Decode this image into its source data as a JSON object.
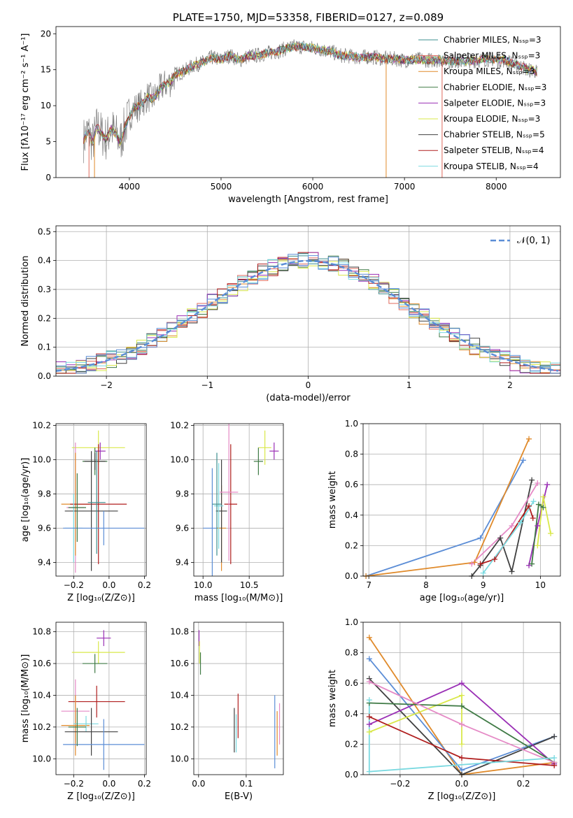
{
  "colors": {
    "Chabrier MILES": "#3d8f8f",
    "Salpeter MILES": "#e06a5c",
    "Kroupa MILES": "#e08a2a",
    "Chabrier ELODIE": "#3f7a45",
    "Salpeter ELODIE": "#9a2fb5",
    "Kroupa ELODIE": "#d9e84a",
    "Chabrier STELIB": "#404040",
    "Salpeter STELIB": "#b01e1e",
    "Kroupa STELIB": "#7ad9e0",
    "gauss": "#5b8dd6",
    "data": "#7f7f7f",
    "pink": "#e58ac6",
    "blue": "#5b8dd6"
  },
  "chart_data": [
    {
      "id": "spectrum",
      "type": "line",
      "title": "PLATE=1750, MJD=53358, FIBERID=0127, z=0.089",
      "xlabel": "wavelength [Angstrom, rest frame]",
      "ylabel": "Flux [fλ10⁻¹⁷ erg cm⁻² s⁻¹ A⁻¹]",
      "xlim": [
        3200,
        8700
      ],
      "ylim": [
        0,
        21
      ],
      "xticks": [
        4000,
        5000,
        6000,
        7000,
        8000
      ],
      "yticks": [
        0,
        5,
        10,
        15,
        20
      ],
      "grid": false,
      "legend_position": "lower right",
      "series": [
        {
          "name": "Chabrier MILES, Nₛₛₚ=3",
          "color_key": "Chabrier MILES"
        },
        {
          "name": "Salpeter MILES, Nₛₛₚ=3",
          "color_key": "Salpeter MILES"
        },
        {
          "name": "Kroupa MILES, Nₛₛₚ=3",
          "color_key": "Kroupa MILES"
        },
        {
          "name": "Chabrier ELODIE, Nₛₛₚ=3",
          "color_key": "Chabrier ELODIE"
        },
        {
          "name": "Salpeter ELODIE, Nₛₛₚ=3",
          "color_key": "Salpeter ELODIE"
        },
        {
          "name": "Kroupa ELODIE, Nₛₛₚ=3",
          "color_key": "Kroupa ELODIE"
        },
        {
          "name": "Chabrier STELIB, Nₛₛₚ=5",
          "color_key": "Chabrier STELIB"
        },
        {
          "name": "Salpeter STELIB, Nₛₛₚ=4",
          "color_key": "Salpeter STELIB"
        },
        {
          "name": "Kroupa STELIB, Nₛₛₚ=4",
          "color_key": "Kroupa STELIB"
        }
      ],
      "data_curve": [
        [
          3500,
          5.2
        ],
        [
          3550,
          6.5
        ],
        [
          3600,
          4.8
        ],
        [
          3650,
          7.2
        ],
        [
          3700,
          6.0
        ],
        [
          3750,
          5.3
        ],
        [
          3800,
          6.8
        ],
        [
          3850,
          6.1
        ],
        [
          3900,
          4.9
        ],
        [
          3950,
          7.0
        ],
        [
          4000,
          8.5
        ],
        [
          4050,
          9.6
        ],
        [
          4100,
          9.9
        ],
        [
          4150,
          10.4
        ],
        [
          4200,
          11.3
        ],
        [
          4250,
          10.9
        ],
        [
          4300,
          11.6
        ],
        [
          4350,
          12.6
        ],
        [
          4400,
          13.0
        ],
        [
          4450,
          13.3
        ],
        [
          4500,
          14.3
        ],
        [
          4600,
          14.8
        ],
        [
          4700,
          15.6
        ],
        [
          4800,
          16.0
        ],
        [
          4900,
          16.7
        ],
        [
          5000,
          16.4
        ],
        [
          5100,
          17.0
        ],
        [
          5200,
          16.3
        ],
        [
          5300,
          16.9
        ],
        [
          5400,
          17.0
        ],
        [
          5500,
          17.3
        ],
        [
          5600,
          17.5
        ],
        [
          5700,
          17.9
        ],
        [
          5800,
          18.2
        ],
        [
          5900,
          18.2
        ],
        [
          6000,
          18.0
        ],
        [
          6100,
          17.8
        ],
        [
          6200,
          17.5
        ],
        [
          6300,
          17.0
        ],
        [
          6400,
          16.9
        ],
        [
          6500,
          16.7
        ],
        [
          6600,
          16.8
        ],
        [
          6700,
          16.7
        ],
        [
          6800,
          16.5
        ],
        [
          6900,
          16.5
        ],
        [
          7000,
          16.3
        ],
        [
          7100,
          16.4
        ],
        [
          7200,
          16.4
        ],
        [
          7300,
          16.3
        ],
        [
          7400,
          16.4
        ],
        [
          7500,
          16.2
        ],
        [
          7600,
          16.2
        ],
        [
          7700,
          16.2
        ],
        [
          7800,
          16.3
        ],
        [
          7900,
          16.5
        ],
        [
          8000,
          16.4
        ],
        [
          8100,
          16.3
        ],
        [
          8200,
          15.8
        ],
        [
          8300,
          15.3
        ],
        [
          8350,
          14.9
        ],
        [
          8400,
          15.0
        ],
        [
          8450,
          14.6
        ]
      ]
    },
    {
      "id": "residuals",
      "type": "line",
      "xlabel": "(data-model)/error",
      "ylabel": "Normed distribution",
      "xlim": [
        -2.5,
        2.5
      ],
      "ylim": [
        0,
        0.52
      ],
      "xticks": [
        -2,
        -1,
        0,
        1,
        2
      ],
      "yticks": [
        0.0,
        0.1,
        0.2,
        0.3,
        0.4,
        0.5
      ],
      "grid": true,
      "legend": [
        {
          "name": "𝒩(0, 1)",
          "color_key": "gauss"
        }
      ],
      "legend_position": "top-right"
    },
    {
      "id": "age_vs_Z",
      "type": "scatter",
      "xlabel": "Z [log₁₀(Z/Z⊙)]",
      "ylabel": "age  [log₁₀(age/yr)]",
      "xlim": [
        -0.3,
        0.21
      ],
      "ylim": [
        9.32,
        10.21
      ],
      "xticks": [
        -0.2,
        0.0,
        0.2
      ],
      "yticks": [
        9.4,
        9.6,
        9.8,
        10.0,
        10.2
      ],
      "grid": true,
      "points": [
        {
          "x": -0.06,
          "y": 10.07,
          "xerr": 0.15,
          "yerr": 0.1,
          "color_key": "Kroupa ELODIE"
        },
        {
          "x": -0.05,
          "y": 10.05,
          "xerr": 0.03,
          "yerr": 0.05,
          "color_key": "Salpeter ELODIE"
        },
        {
          "x": -0.08,
          "y": 9.99,
          "xerr": 0.07,
          "yerr": 0.08,
          "color_key": "Chabrier ELODIE"
        },
        {
          "x": -0.08,
          "y": 9.99,
          "xerr": 0.06,
          "yerr": 0.05,
          "color_key": "Chabrier STELIB"
        },
        {
          "x": -0.19,
          "y": 9.72,
          "xerr": 0.05,
          "yerr": 0.38,
          "color_key": "pink"
        },
        {
          "x": -0.19,
          "y": 9.74,
          "xerr": 0.08,
          "yerr": 0.3,
          "color_key": "Kroupa MILES"
        },
        {
          "x": -0.06,
          "y": 9.74,
          "xerr": 0.16,
          "yerr": 0.35,
          "color_key": "Salpeter STELIB"
        },
        {
          "x": -0.1,
          "y": 9.7,
          "xerr": 0.15,
          "yerr": 0.35,
          "color_key": "Chabrier STELIB"
        },
        {
          "x": -0.2,
          "y": 9.6,
          "xerr": 0.05,
          "yerr": 0.2,
          "color_key": "Kroupa STELIB"
        },
        {
          "x": -0.03,
          "y": 9.6,
          "xerr": 0.23,
          "yerr": 0.1,
          "color_key": "blue"
        },
        {
          "x": -0.07,
          "y": 9.75,
          "xerr": 0.05,
          "yerr": 0.3,
          "color_key": "Chabrier MILES"
        },
        {
          "x": -0.18,
          "y": 9.72,
          "xerr": 0.05,
          "yerr": 0.2,
          "color_key": "Chabrier ELODIE"
        }
      ]
    },
    {
      "id": "age_vs_mass",
      "type": "scatter",
      "xlabel": "mass [log₁₀(M/M⊙)]",
      "ylabel": "",
      "xlim": [
        9.9,
        10.87
      ],
      "ylim": [
        9.32,
        10.21
      ],
      "xticks": [
        10.0,
        10.5
      ],
      "yticks": [
        9.4,
        9.6,
        9.8,
        10.0,
        10.2
      ],
      "grid": true,
      "points": [
        {
          "x": 10.67,
          "y": 10.07,
          "xerr": 0.07,
          "yerr": 0.1,
          "color_key": "Kroupa ELODIE"
        },
        {
          "x": 10.77,
          "y": 10.05,
          "xerr": 0.05,
          "yerr": 0.05,
          "color_key": "Salpeter ELODIE"
        },
        {
          "x": 10.6,
          "y": 9.99,
          "xerr": 0.05,
          "yerr": 0.08,
          "color_key": "Chabrier ELODIE"
        },
        {
          "x": 10.1,
          "y": 9.6,
          "xerr": 0.1,
          "yerr": 0.35,
          "color_key": "blue"
        },
        {
          "x": 10.2,
          "y": 9.6,
          "xerr": 0.05,
          "yerr": 0.25,
          "color_key": "Kroupa MILES"
        },
        {
          "x": 10.2,
          "y": 9.7,
          "xerr": 0.06,
          "yerr": 0.3,
          "color_key": "Chabrier STELIB"
        },
        {
          "x": 10.3,
          "y": 9.74,
          "xerr": 0.07,
          "yerr": 0.35,
          "color_key": "Salpeter STELIB"
        },
        {
          "x": 10.28,
          "y": 9.81,
          "xerr": 0.1,
          "yerr": 0.4,
          "color_key": "pink"
        },
        {
          "x": 10.17,
          "y": 9.73,
          "xerr": 0.05,
          "yerr": 0.25,
          "color_key": "Kroupa STELIB"
        },
        {
          "x": 10.15,
          "y": 9.74,
          "xerr": 0.05,
          "yerr": 0.3,
          "color_key": "Chabrier MILES"
        }
      ]
    },
    {
      "id": "weight_vs_age",
      "type": "line",
      "xlabel": "age  [log₁₀(age/yr)]",
      "ylabel": "mass weight",
      "xlim": [
        6.9,
        10.35
      ],
      "ylim": [
        0,
        1.0
      ],
      "xticks": [
        7,
        8,
        9,
        10
      ],
      "yticks": [
        0.0,
        0.2,
        0.4,
        0.6,
        0.8,
        1.0
      ],
      "grid": true,
      "series": [
        {
          "color_key": "blue",
          "x": [
            6.95,
            8.95,
            9.7
          ],
          "y": [
            0.0,
            0.25,
            0.76
          ]
        },
        {
          "color_key": "Kroupa MILES",
          "x": [
            6.95,
            8.85,
            9.8
          ],
          "y": [
            0.0,
            0.09,
            0.9
          ]
        },
        {
          "color_key": "Chabrier STELIB",
          "x": [
            8.8,
            8.95,
            9.3,
            9.5,
            9.85
          ],
          "y": [
            0.0,
            0.07,
            0.25,
            0.03,
            0.63
          ]
        },
        {
          "color_key": "Salpeter STELIB",
          "x": [
            8.95,
            9.2,
            9.8,
            9.87
          ],
          "y": [
            0.08,
            0.11,
            0.46,
            0.38
          ]
        },
        {
          "color_key": "pink",
          "x": [
            8.8,
            9.5,
            9.95
          ],
          "y": [
            0.08,
            0.33,
            0.61
          ]
        },
        {
          "color_key": "Salpeter ELODIE",
          "x": [
            9.8,
            9.95,
            10.12
          ],
          "y": [
            0.07,
            0.33,
            0.6
          ]
        },
        {
          "color_key": "Kroupa ELODIE",
          "x": [
            9.95,
            10.05,
            10.18
          ],
          "y": [
            0.2,
            0.52,
            0.28
          ]
        },
        {
          "color_key": "Kroupa STELIB",
          "x": [
            9.0,
            9.65,
            9.88
          ],
          "y": [
            0.02,
            0.35,
            0.49
          ]
        },
        {
          "color_key": "Chabrier ELODIE",
          "x": [
            9.85,
            9.97,
            10.05
          ],
          "y": [
            0.08,
            0.47,
            0.45
          ]
        }
      ]
    },
    {
      "id": "mass_vs_Z",
      "type": "scatter",
      "xlabel": "Z [log₁₀(Z/Z⊙)]",
      "ylabel": "mass [log₁₀(M/M⊙)]",
      "xlim": [
        -0.3,
        0.21
      ],
      "ylim": [
        9.9,
        10.86
      ],
      "xticks": [
        -0.2,
        0.0,
        0.2
      ],
      "yticks": [
        10.0,
        10.2,
        10.4,
        10.6,
        10.8
      ],
      "grid": true,
      "points": [
        {
          "x": -0.03,
          "y": 10.76,
          "xerr": 0.04,
          "yerr": 0.05,
          "color_key": "Salpeter ELODIE"
        },
        {
          "x": -0.06,
          "y": 10.67,
          "xerr": 0.15,
          "yerr": 0.07,
          "color_key": "Kroupa ELODIE"
        },
        {
          "x": -0.08,
          "y": 10.6,
          "xerr": 0.07,
          "yerr": 0.06,
          "color_key": "Chabrier ELODIE"
        },
        {
          "x": -0.07,
          "y": 10.36,
          "xerr": 0.16,
          "yerr": 0.1,
          "color_key": "Salpeter STELIB"
        },
        {
          "x": -0.19,
          "y": 10.3,
          "xerr": 0.08,
          "yerr": 0.2,
          "color_key": "pink"
        },
        {
          "x": -0.19,
          "y": 10.21,
          "xerr": 0.08,
          "yerr": 0.19,
          "color_key": "Kroupa MILES"
        },
        {
          "x": -0.13,
          "y": 10.22,
          "xerr": 0.07,
          "yerr": 0.05,
          "color_key": "Kroupa STELIB"
        },
        {
          "x": -0.1,
          "y": 10.17,
          "xerr": 0.15,
          "yerr": 0.15,
          "color_key": "Chabrier STELIB"
        },
        {
          "x": -0.03,
          "y": 10.09,
          "xerr": 0.23,
          "yerr": 0.16,
          "color_key": "blue"
        },
        {
          "x": -0.18,
          "y": 10.2,
          "xerr": 0.05,
          "yerr": 0.12,
          "color_key": "Chabrier ELODIE"
        }
      ]
    },
    {
      "id": "mass_vs_EBV",
      "type": "scatter",
      "xlabel": "E(B-V)",
      "ylabel": "",
      "xlim": [
        -0.01,
        0.178
      ],
      "ylim": [
        9.9,
        10.86
      ],
      "xticks": [
        0.0,
        0.1
      ],
      "yticks": [
        10.0,
        10.2,
        10.4,
        10.6,
        10.8
      ],
      "grid": true,
      "points": [
        {
          "x": 0.001,
          "y": 10.76,
          "xerr": 0,
          "yerr": 0.05,
          "color_key": "Salpeter ELODIE"
        },
        {
          "x": 0.002,
          "y": 10.67,
          "xerr": 0,
          "yerr": 0.07,
          "color_key": "Kroupa ELODIE"
        },
        {
          "x": 0.004,
          "y": 10.6,
          "xerr": 0,
          "yerr": 0.07,
          "color_key": "Chabrier ELODIE"
        },
        {
          "x": 0.075,
          "y": 10.18,
          "xerr": 0,
          "yerr": 0.14,
          "color_key": "Chabrier STELIB"
        },
        {
          "x": 0.079,
          "y": 10.16,
          "xerr": 0,
          "yerr": 0.12,
          "color_key": "Kroupa STELIB"
        },
        {
          "x": 0.083,
          "y": 10.27,
          "xerr": 0,
          "yerr": 0.14,
          "color_key": "Salpeter STELIB"
        },
        {
          "x": 0.16,
          "y": 10.17,
          "xerr": 0,
          "yerr": 0.23,
          "color_key": "blue"
        },
        {
          "x": 0.165,
          "y": 10.16,
          "xerr": 0,
          "yerr": 0.14,
          "color_key": "Kroupa MILES"
        },
        {
          "x": 0.17,
          "y": 10.22,
          "xerr": 0,
          "yerr": 0.13,
          "color_key": "pink"
        }
      ]
    },
    {
      "id": "weight_vs_Z",
      "type": "line",
      "xlabel": "Z [log₁₀(Z/Z⊙)]",
      "ylabel": "mass weight",
      "xlim": [
        -0.32,
        0.32
      ],
      "ylim": [
        0,
        1.0
      ],
      "xticks": [
        -0.2,
        0.0,
        0.2
      ],
      "yticks": [
        0.0,
        0.2,
        0.4,
        0.6,
        0.8,
        1.0
      ],
      "grid": true,
      "series": [
        {
          "color_key": "Kroupa MILES",
          "x": [
            -0.3,
            0.0,
            0.3
          ],
          "y": [
            0.9,
            0.0,
            0.08
          ]
        },
        {
          "color_key": "blue",
          "x": [
            -0.3,
            0.0,
            0.3
          ],
          "y": [
            0.76,
            0.03,
            0.25
          ]
        },
        {
          "color_key": "Chabrier STELIB",
          "x": [
            -0.3,
            0.0,
            0.3
          ],
          "y": [
            0.63,
            0.0,
            0.25
          ]
        },
        {
          "color_key": "Salpeter ELODIE",
          "x": [
            -0.3,
            0.0,
            0.3
          ],
          "y": [
            0.33,
            0.6,
            0.07
          ]
        },
        {
          "color_key": "Kroupa ELODIE",
          "x": [
            -0.3,
            0.0,
            0.0
          ],
          "y": [
            0.28,
            0.52,
            0.2
          ]
        },
        {
          "color_key": "Chabrier ELODIE",
          "x": [
            -0.3,
            0.0,
            0.3
          ],
          "y": [
            0.47,
            0.45,
            0.08
          ]
        },
        {
          "color_key": "pink",
          "x": [
            -0.3,
            0.0,
            0.3
          ],
          "y": [
            0.61,
            0.33,
            0.08
          ]
        },
        {
          "color_key": "Salpeter STELIB",
          "x": [
            -0.3,
            0.0,
            0.3
          ],
          "y": [
            0.38,
            0.11,
            0.06
          ]
        },
        {
          "color_key": "Kroupa STELIB",
          "x": [
            -0.3,
            -0.3,
            0.3
          ],
          "y": [
            0.49,
            0.02,
            0.11
          ]
        }
      ]
    }
  ]
}
